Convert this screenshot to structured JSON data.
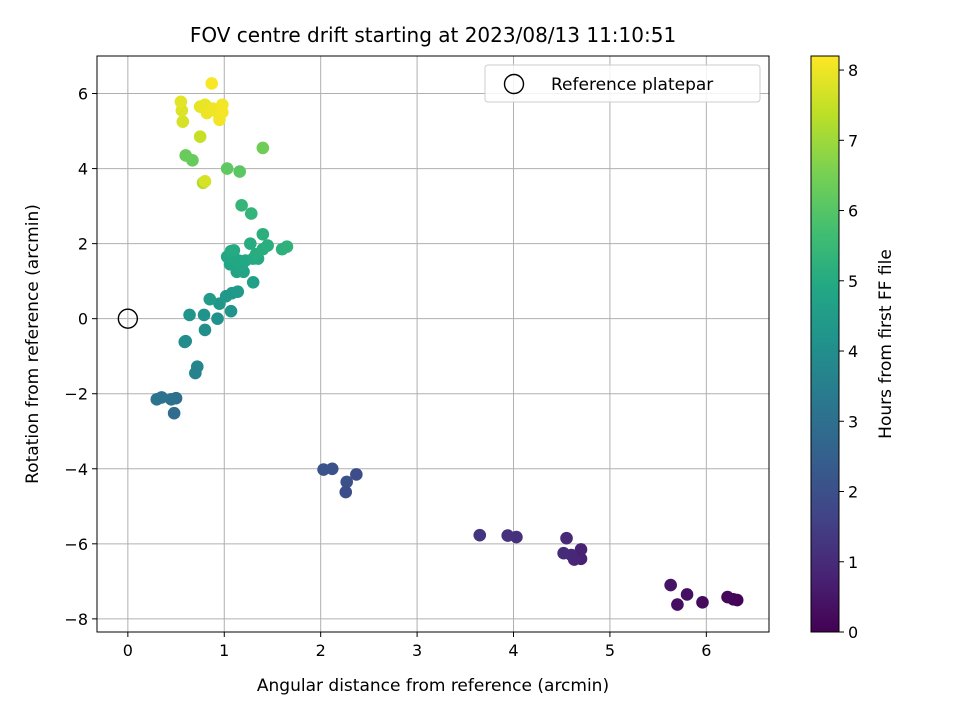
{
  "chart_data": {
    "type": "scatter",
    "title": "FOV centre drift starting at 2023/08/13 11:10:51",
    "xlabel": "Angular distance from reference (arcmin)",
    "ylabel": "Rotation from reference (arcmin)",
    "xlim": [
      -0.32,
      6.65
    ],
    "ylim": [
      -8.35,
      7.0
    ],
    "xticks": [
      "0",
      "1",
      "2",
      "3",
      "4",
      "5",
      "6"
    ],
    "yticks": [
      "−8",
      "−6",
      "−4",
      "−2",
      "0",
      "2",
      "4",
      "6"
    ],
    "grid": true,
    "legend": {
      "label": "Reference platepar",
      "position": "top-right",
      "marker": "open-circle"
    },
    "reference_point": {
      "x": 0,
      "y": 0
    },
    "colorbar": {
      "label": "Hours from first FF file",
      "colormap": "viridis",
      "range": [
        0,
        8.2
      ],
      "ticks": [
        "0",
        "1",
        "2",
        "3",
        "4",
        "5",
        "6",
        "7",
        "8"
      ]
    },
    "points": [
      {
        "x": 6.32,
        "y": -7.5,
        "c": 0.05
      },
      {
        "x": 6.28,
        "y": -7.48,
        "c": 0.1
      },
      {
        "x": 6.22,
        "y": -7.42,
        "c": 0.15
      },
      {
        "x": 5.96,
        "y": -7.56,
        "c": 0.25
      },
      {
        "x": 5.8,
        "y": -7.35,
        "c": 0.35
      },
      {
        "x": 5.7,
        "y": -7.62,
        "c": 0.3
      },
      {
        "x": 5.63,
        "y": -7.1,
        "c": 0.45
      },
      {
        "x": 4.7,
        "y": -6.15,
        "c": 0.8
      },
      {
        "x": 4.7,
        "y": -6.4,
        "c": 0.75
      },
      {
        "x": 4.63,
        "y": -6.42,
        "c": 0.85
      },
      {
        "x": 4.6,
        "y": -6.3,
        "c": 0.9
      },
      {
        "x": 4.55,
        "y": -5.85,
        "c": 0.95
      },
      {
        "x": 4.52,
        "y": -6.25,
        "c": 1.0
      },
      {
        "x": 4.03,
        "y": -5.82,
        "c": 1.1
      },
      {
        "x": 3.94,
        "y": -5.78,
        "c": 1.15
      },
      {
        "x": 3.65,
        "y": -5.77,
        "c": 1.25
      },
      {
        "x": 2.37,
        "y": -4.15,
        "c": 1.9
      },
      {
        "x": 2.27,
        "y": -4.35,
        "c": 2.0
      },
      {
        "x": 2.26,
        "y": -4.62,
        "c": 1.95
      },
      {
        "x": 2.12,
        "y": -4.0,
        "c": 2.05
      },
      {
        "x": 2.03,
        "y": -4.02,
        "c": 2.1
      },
      {
        "x": 0.48,
        "y": -2.52,
        "c": 2.9
      },
      {
        "x": 0.5,
        "y": -2.12,
        "c": 3.0
      },
      {
        "x": 0.45,
        "y": -2.15,
        "c": 3.05
      },
      {
        "x": 0.35,
        "y": -2.1,
        "c": 3.1
      },
      {
        "x": 0.3,
        "y": -2.15,
        "c": 3.15
      },
      {
        "x": 0.72,
        "y": -1.28,
        "c": 3.7
      },
      {
        "x": 0.7,
        "y": -1.45,
        "c": 3.65
      },
      {
        "x": 0.59,
        "y": -0.62,
        "c": 3.9
      },
      {
        "x": 0.6,
        "y": -0.6,
        "c": 3.95
      },
      {
        "x": 0.8,
        "y": -0.3,
        "c": 4.05
      },
      {
        "x": 0.93,
        "y": 0.0,
        "c": 4.1
      },
      {
        "x": 0.79,
        "y": 0.1,
        "c": 4.15
      },
      {
        "x": 0.64,
        "y": 0.1,
        "c": 4.2
      },
      {
        "x": 1.07,
        "y": 0.2,
        "c": 4.25
      },
      {
        "x": 0.95,
        "y": 0.4,
        "c": 4.3
      },
      {
        "x": 1.02,
        "y": 0.6,
        "c": 4.35
      },
      {
        "x": 1.08,
        "y": 0.68,
        "c": 4.4
      },
      {
        "x": 1.14,
        "y": 0.72,
        "c": 4.45
      },
      {
        "x": 0.85,
        "y": 0.52,
        "c": 4.5
      },
      {
        "x": 1.3,
        "y": 0.97,
        "c": 4.65
      },
      {
        "x": 1.13,
        "y": 1.25,
        "c": 4.75
      },
      {
        "x": 1.2,
        "y": 1.25,
        "c": 4.78
      },
      {
        "x": 1.06,
        "y": 1.45,
        "c": 4.8
      },
      {
        "x": 1.12,
        "y": 1.45,
        "c": 4.82
      },
      {
        "x": 1.18,
        "y": 1.4,
        "c": 4.84
      },
      {
        "x": 1.03,
        "y": 1.65,
        "c": 4.86
      },
      {
        "x": 1.1,
        "y": 1.62,
        "c": 4.88
      },
      {
        "x": 1.15,
        "y": 1.55,
        "c": 4.9
      },
      {
        "x": 1.22,
        "y": 1.55,
        "c": 4.92
      },
      {
        "x": 1.3,
        "y": 1.6,
        "c": 4.94
      },
      {
        "x": 1.35,
        "y": 1.6,
        "c": 4.96
      },
      {
        "x": 1.07,
        "y": 1.8,
        "c": 4.98
      },
      {
        "x": 1.1,
        "y": 1.82,
        "c": 5.0
      },
      {
        "x": 1.27,
        "y": 2.0,
        "c": 5.05
      },
      {
        "x": 1.33,
        "y": 1.72,
        "c": 5.08
      },
      {
        "x": 1.4,
        "y": 1.85,
        "c": 5.1
      },
      {
        "x": 1.45,
        "y": 1.95,
        "c": 5.12
      },
      {
        "x": 1.4,
        "y": 2.25,
        "c": 5.15
      },
      {
        "x": 1.6,
        "y": 1.85,
        "c": 5.2
      },
      {
        "x": 1.65,
        "y": 1.92,
        "c": 5.25
      },
      {
        "x": 1.28,
        "y": 2.8,
        "c": 5.35
      },
      {
        "x": 1.18,
        "y": 3.02,
        "c": 5.4
      },
      {
        "x": 1.16,
        "y": 3.92,
        "c": 6.1
      },
      {
        "x": 1.03,
        "y": 4.0,
        "c": 6.15
      },
      {
        "x": 0.67,
        "y": 4.22,
        "c": 6.25
      },
      {
        "x": 0.6,
        "y": 4.35,
        "c": 6.3
      },
      {
        "x": 1.4,
        "y": 4.55,
        "c": 6.4
      },
      {
        "x": 0.78,
        "y": 3.62,
        "c": 7.2
      },
      {
        "x": 0.8,
        "y": 3.66,
        "c": 7.7
      },
      {
        "x": 0.75,
        "y": 4.85,
        "c": 7.5
      },
      {
        "x": 0.57,
        "y": 5.25,
        "c": 7.7
      },
      {
        "x": 0.56,
        "y": 5.55,
        "c": 7.8
      },
      {
        "x": 0.55,
        "y": 5.78,
        "c": 7.85
      },
      {
        "x": 0.75,
        "y": 5.65,
        "c": 7.9
      },
      {
        "x": 0.8,
        "y": 5.7,
        "c": 7.95
      },
      {
        "x": 0.82,
        "y": 5.48,
        "c": 7.98
      },
      {
        "x": 0.88,
        "y": 5.6,
        "c": 8.0
      },
      {
        "x": 0.93,
        "y": 5.5,
        "c": 8.02
      },
      {
        "x": 0.95,
        "y": 5.3,
        "c": 8.04
      },
      {
        "x": 0.98,
        "y": 5.7,
        "c": 8.06
      },
      {
        "x": 0.98,
        "y": 5.5,
        "c": 8.08
      },
      {
        "x": 0.87,
        "y": 6.27,
        "c": 8.15
      }
    ]
  }
}
